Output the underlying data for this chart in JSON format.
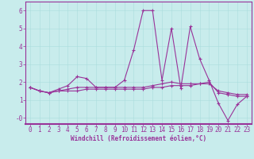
{
  "xlabel": "Windchill (Refroidissement éolien,°C)",
  "background_color": "#c8ecec",
  "line_color": "#993399",
  "ylim": [
    -0.35,
    6.5
  ],
  "xlim": [
    -0.5,
    23.5
  ],
  "yticks": [
    0,
    1,
    2,
    3,
    4,
    5,
    6
  ],
  "ytick_labels": [
    "-0",
    "1",
    "2",
    "3",
    "4",
    "5",
    "6"
  ],
  "xticks": [
    0,
    1,
    2,
    3,
    4,
    5,
    6,
    7,
    8,
    9,
    10,
    11,
    12,
    13,
    14,
    15,
    16,
    17,
    18,
    19,
    20,
    21,
    22,
    23
  ],
  "series1": [
    1.7,
    1.5,
    1.4,
    1.6,
    1.8,
    2.3,
    2.2,
    1.7,
    1.7,
    1.7,
    2.1,
    3.8,
    6.0,
    6.0,
    2.1,
    5.0,
    1.65,
    5.1,
    3.3,
    2.1,
    0.8,
    -0.15,
    0.75,
    1.2
  ],
  "series2": [
    1.7,
    1.5,
    1.4,
    1.5,
    1.6,
    1.7,
    1.7,
    1.7,
    1.7,
    1.7,
    1.7,
    1.7,
    1.7,
    1.8,
    1.9,
    2.0,
    1.9,
    1.9,
    1.9,
    1.9,
    1.5,
    1.4,
    1.3,
    1.3
  ],
  "series3": [
    1.7,
    1.5,
    1.4,
    1.5,
    1.5,
    1.5,
    1.6,
    1.6,
    1.6,
    1.6,
    1.6,
    1.6,
    1.6,
    1.7,
    1.7,
    1.8,
    1.8,
    1.8,
    1.9,
    2.0,
    1.4,
    1.3,
    1.2,
    1.2
  ],
  "grid_color": "#aadddd",
  "marker": "+",
  "markersize": 3,
  "linewidth": 0.8,
  "tick_fontsize": 5.5,
  "xlabel_fontsize": 5.5
}
